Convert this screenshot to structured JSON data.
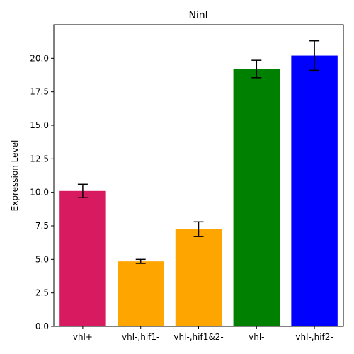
{
  "chart_data": {
    "type": "bar",
    "title": "Ninl",
    "xlabel": "",
    "ylabel": "Expression Level",
    "ylim": [
      0,
      22.5
    ],
    "yticks": [
      "0.0",
      "2.5",
      "5.0",
      "7.5",
      "10.0",
      "12.5",
      "15.0",
      "17.5",
      "20.0"
    ],
    "grid": false,
    "legend": "none",
    "categories": [
      "vhl+",
      "vhl-,hif1-",
      "vhl-,hif1&2-",
      "vhl-",
      "vhl-,hif2-"
    ],
    "values": [
      10.1,
      4.85,
      7.25,
      19.2,
      20.2
    ],
    "errors": [
      0.5,
      0.15,
      0.55,
      0.65,
      1.1
    ],
    "colors": [
      "#d81b60",
      "#ffa500",
      "#ffa500",
      "#008000",
      "#0000ff"
    ]
  }
}
